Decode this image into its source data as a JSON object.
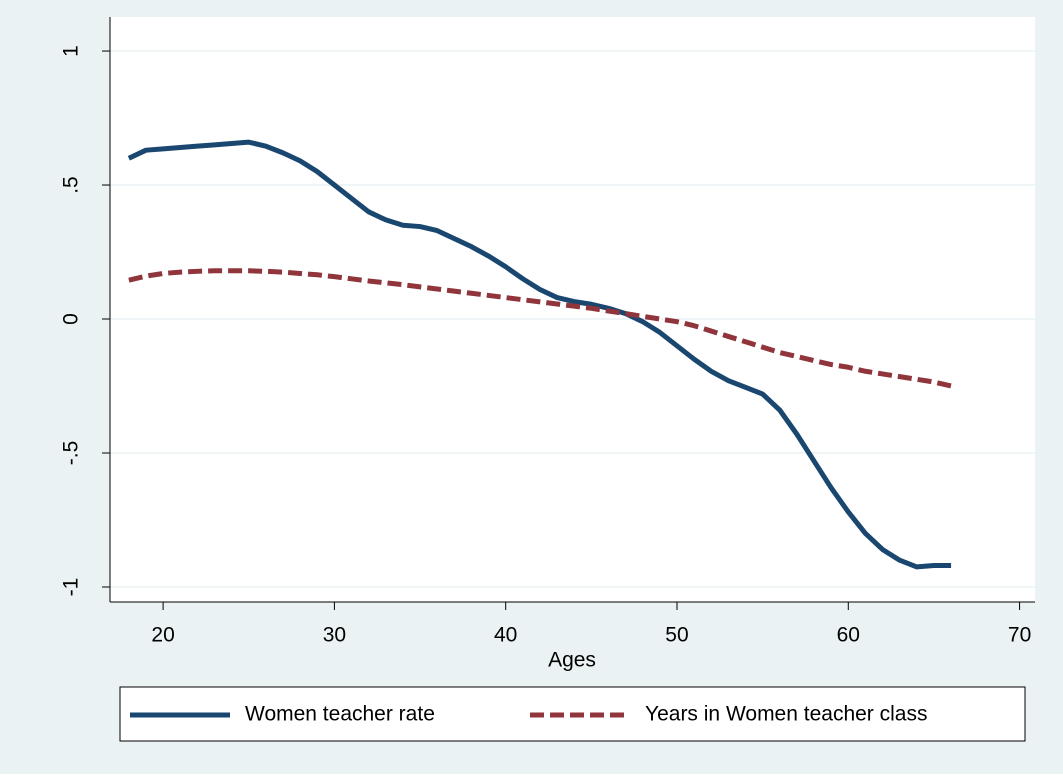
{
  "chart_data": {
    "type": "line",
    "x_label": "Ages",
    "x": [
      18,
      19,
      20,
      21,
      22,
      23,
      24,
      25,
      26,
      27,
      28,
      29,
      30,
      31,
      32,
      33,
      34,
      35,
      36,
      37,
      38,
      39,
      40,
      41,
      42,
      43,
      44,
      45,
      46,
      47,
      48,
      49,
      50,
      51,
      52,
      53,
      54,
      55,
      56,
      57,
      58,
      59,
      60,
      61,
      62,
      63,
      64,
      65,
      66
    ],
    "series": [
      {
        "name": "Women teacher rate",
        "color": "#1a476f",
        "dash": false,
        "values": [
          0.6,
          0.63,
          0.635,
          0.64,
          0.645,
          0.65,
          0.655,
          0.66,
          0.645,
          0.62,
          0.59,
          0.55,
          0.5,
          0.45,
          0.4,
          0.37,
          0.35,
          0.345,
          0.33,
          0.3,
          0.27,
          0.235,
          0.195,
          0.15,
          0.11,
          0.08,
          0.065,
          0.055,
          0.04,
          0.02,
          -0.01,
          -0.05,
          -0.1,
          -0.15,
          -0.195,
          -0.23,
          -0.255,
          -0.28,
          -0.34,
          -0.43,
          -0.53,
          -0.63,
          -0.72,
          -0.8,
          -0.86,
          -0.9,
          -0.925,
          -0.92,
          -0.92
        ]
      },
      {
        "name": "Years in Women teacher class",
        "color": "#90353b",
        "dash": true,
        "values": [
          0.145,
          0.16,
          0.17,
          0.175,
          0.178,
          0.18,
          0.18,
          0.18,
          0.178,
          0.175,
          0.17,
          0.165,
          0.158,
          0.15,
          0.142,
          0.135,
          0.128,
          0.12,
          0.112,
          0.104,
          0.096,
          0.088,
          0.08,
          0.072,
          0.064,
          0.056,
          0.048,
          0.04,
          0.03,
          0.02,
          0.01,
          0.0,
          -0.01,
          -0.025,
          -0.045,
          -0.065,
          -0.085,
          -0.105,
          -0.125,
          -0.14,
          -0.155,
          -0.17,
          -0.18,
          -0.195,
          -0.205,
          -0.215,
          -0.225,
          -0.235,
          -0.25
        ]
      }
    ],
    "xlim": [
      16.9,
      70.9
    ],
    "xticks": [
      20,
      30,
      40,
      50,
      60,
      70
    ],
    "ylim": [
      -1.056,
      1.127
    ],
    "yticks": [
      -1,
      {
        "value": -0.5,
        "label": "-.5"
      },
      0,
      {
        "value": 0.5,
        "label": ".5"
      },
      1
    ],
    "grid": true,
    "legend": "bottom"
  }
}
